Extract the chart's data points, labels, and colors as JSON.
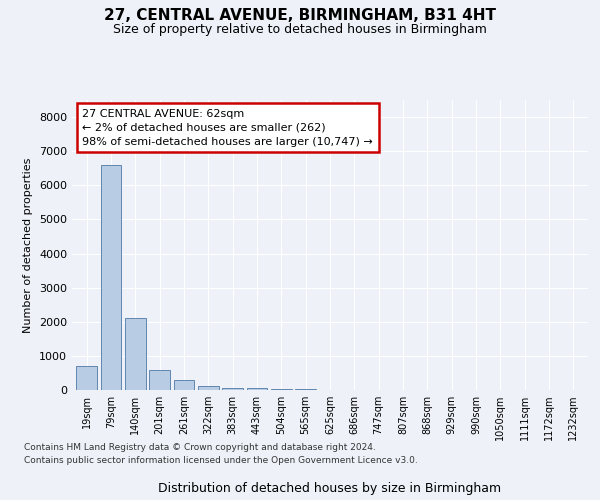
{
  "title1": "27, CENTRAL AVENUE, BIRMINGHAM, B31 4HT",
  "title2": "Size of property relative to detached houses in Birmingham",
  "xlabel": "Distribution of detached houses by size in Birmingham",
  "ylabel": "Number of detached properties",
  "categories": [
    "19sqm",
    "79sqm",
    "140sqm",
    "201sqm",
    "261sqm",
    "322sqm",
    "383sqm",
    "443sqm",
    "504sqm",
    "565sqm",
    "625sqm",
    "686sqm",
    "747sqm",
    "807sqm",
    "868sqm",
    "929sqm",
    "990sqm",
    "1050sqm",
    "1111sqm",
    "1172sqm",
    "1232sqm"
  ],
  "values": [
    700,
    6600,
    2100,
    600,
    280,
    130,
    70,
    50,
    40,
    30,
    10,
    5,
    5,
    0,
    0,
    0,
    0,
    0,
    0,
    0,
    0
  ],
  "bar_color": "#b8cce4",
  "bar_edge_color": "#4e79a7",
  "annotation_box_text": "27 CENTRAL AVENUE: 62sqm\n← 2% of detached houses are smaller (262)\n98% of semi-detached houses are larger (10,747) →",
  "annotation_box_color": "#ffffff",
  "annotation_box_edge_color": "#cc0000",
  "ylim": [
    0,
    8500
  ],
  "yticks": [
    0,
    1000,
    2000,
    3000,
    4000,
    5000,
    6000,
    7000,
    8000
  ],
  "footer1": "Contains HM Land Registry data © Crown copyright and database right 2024.",
  "footer2": "Contains public sector information licensed under the Open Government Licence v3.0.",
  "bg_color": "#eef2f8",
  "plot_bg_color": "#eef2f8",
  "grid_color": "#ffffff",
  "title1_fontsize": 11,
  "title2_fontsize": 9
}
